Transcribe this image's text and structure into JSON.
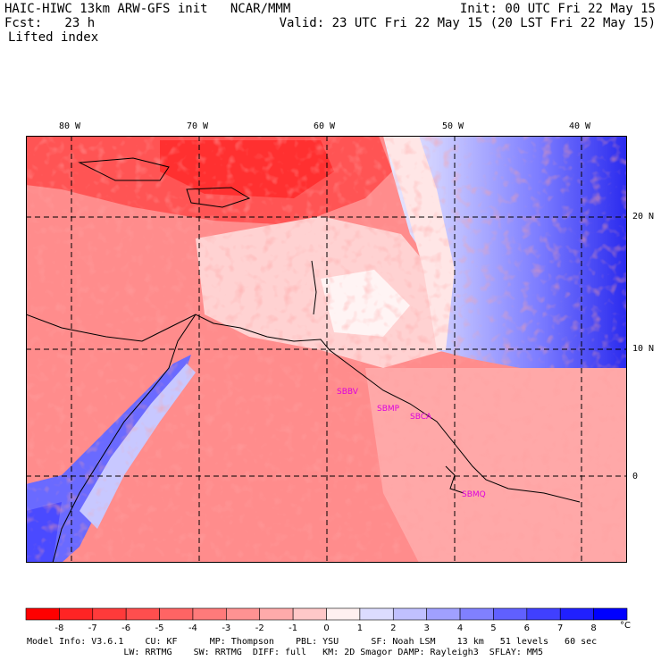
{
  "header": {
    "title_left": "HAIC-HIWC 13km ARW-GFS init   NCAR/MMM",
    "forecast": "Fcst:   23 h",
    "field": "Lifted index",
    "init": "Init: 00 UTC Fri 22 May 15",
    "valid": "Valid: 23 UTC Fri 22 May 15 (20 LST Fri 22 May 15)"
  },
  "map": {
    "lon_labels": [
      "80 W",
      "70 W",
      "60 W",
      "50 W",
      "40 W"
    ],
    "lat_labels": [
      "20 N",
      "10 N",
      "0"
    ],
    "stations": [
      "SBBV",
      "SBMP",
      "SBCA",
      "SBMQ"
    ],
    "colors": {
      "strong_red": "#ff2222",
      "red": "#ff5a5a",
      "light_red": "#ff8c8c",
      "pale_red": "#ffd0d0",
      "white": "#ffffff",
      "pale_blue": "#d2d2ff",
      "blue": "#8c8cff",
      "deep_blue": "#2a2aee",
      "station": "#dd00dd"
    }
  },
  "colorbar": {
    "unit": "°C",
    "ticks": [
      "-8",
      "-7",
      "-6",
      "-5",
      "-4",
      "-3",
      "-2",
      "-1",
      "0",
      "1",
      "2",
      "3",
      "4",
      "5",
      "6",
      "7",
      "8"
    ],
    "colors": [
      "#ff0000",
      "#ff2424",
      "#ff3a3a",
      "#ff4e4e",
      "#ff6464",
      "#ff7a7a",
      "#ff9292",
      "#ffaaaa",
      "#ffc8c8",
      "#fff0f0",
      "#dcdcff",
      "#c0c0ff",
      "#a0a0ff",
      "#8080ff",
      "#6060ff",
      "#4040ff",
      "#2020ff",
      "#0000ff"
    ]
  },
  "footer": {
    "line1": "Model Info: V3.6.1    CU: KF      MP: Thompson    PBL: YSU      SF: Noah LSM    13 km   51 levels   60 sec",
    "line2": "                  LW: RRTMG    SW: RRTMG  DIFF: full   KM: 2D Smagor DAMP: Rayleigh3  SFLAY: MM5"
  }
}
